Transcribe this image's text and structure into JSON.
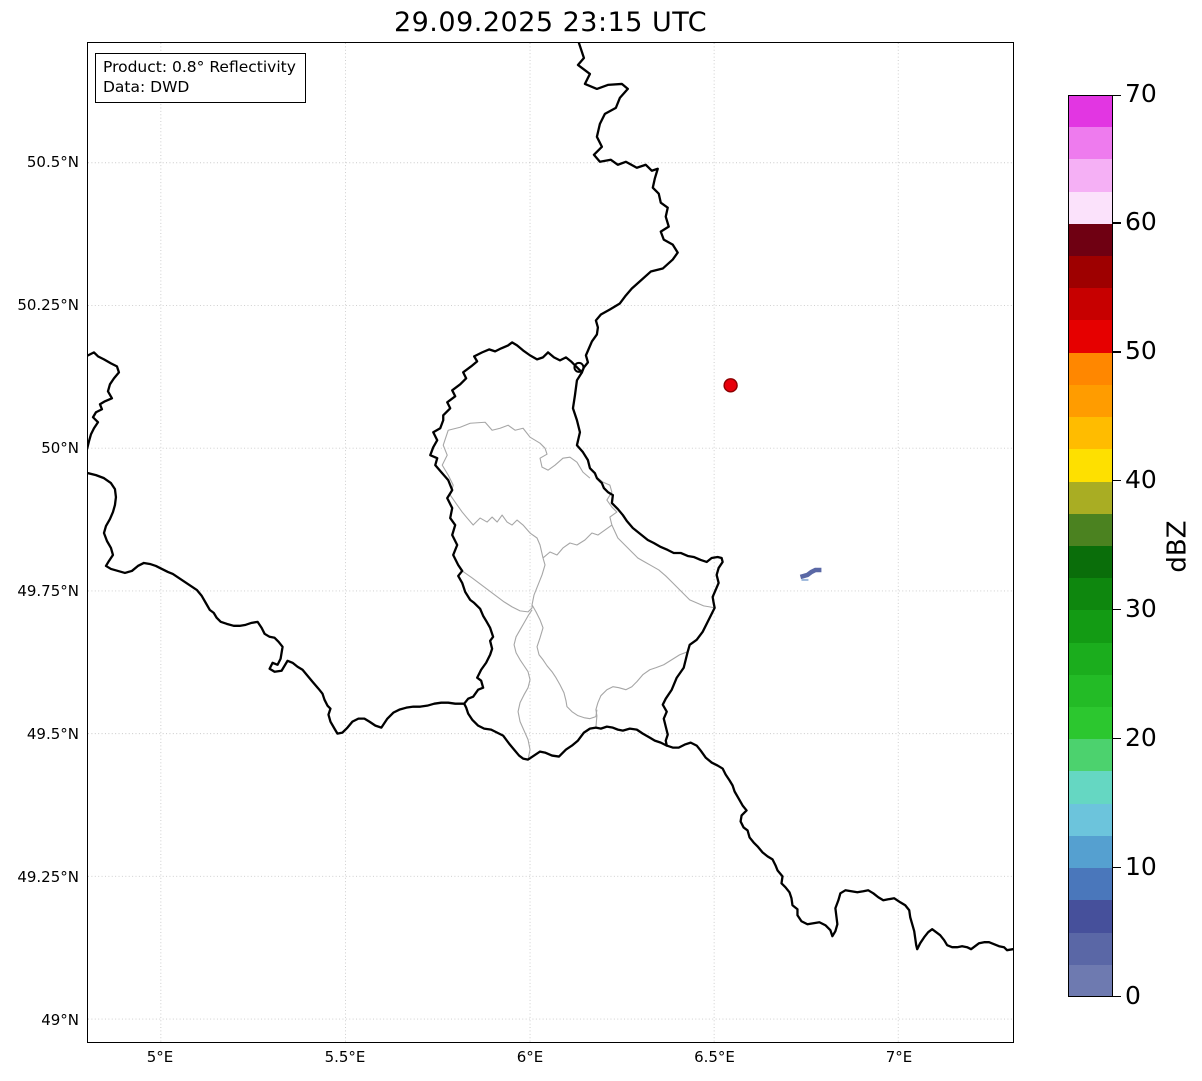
{
  "title": "29.09.2025 23:15 UTC",
  "info_box": {
    "product": "Product: 0.8° Reflectivity",
    "data_source": "Data: DWD"
  },
  "axes": {
    "x_tick_labels": [
      "5°E",
      "5.5°E",
      "6°E",
      "6.5°E",
      "7°E"
    ],
    "y_tick_labels": [
      "50.5°N",
      "50.25°N",
      "50°N",
      "49.75°N",
      "49.5°N",
      "49.25°N",
      "49°N"
    ]
  },
  "colorbar": {
    "label": "dBZ",
    "tick_labels": [
      "0",
      "10",
      "20",
      "30",
      "40",
      "50",
      "60",
      "70"
    ],
    "value_range_dbz": [
      0,
      70
    ],
    "segment_step_dbz": 2.5,
    "segment_colors_bottom_to_top": [
      "#6e7ab0",
      "#5a67a6",
      "#46509b",
      "#4a77bb",
      "#55a0d0",
      "#6cc4dc",
      "#65d7c2",
      "#4cd26e",
      "#2cc72f",
      "#23bb26",
      "#1bad1d",
      "#139b14",
      "#0e870e",
      "#0a6e0a",
      "#4b8220",
      "#a9ad23",
      "#fee000",
      "#ffbc00",
      "#ff9c00",
      "#ff8700",
      "#e60000",
      "#c70000",
      "#9e0000",
      "#6f0012",
      "#fbe2fb",
      "#f5b0f5",
      "#ee7bee",
      "#e236e2"
    ]
  },
  "map_layers": {
    "country_border_color": "#000000",
    "district_border_color": "#a6a6a6",
    "grid_color": "#c9c9c9",
    "radar_site_marker": {
      "shape": "circle",
      "fill": "#e8000b",
      "outline": "#8b0000"
    },
    "precip_echo": {
      "color": "#5a68a5",
      "highlight": "#9db8dc"
    }
  }
}
